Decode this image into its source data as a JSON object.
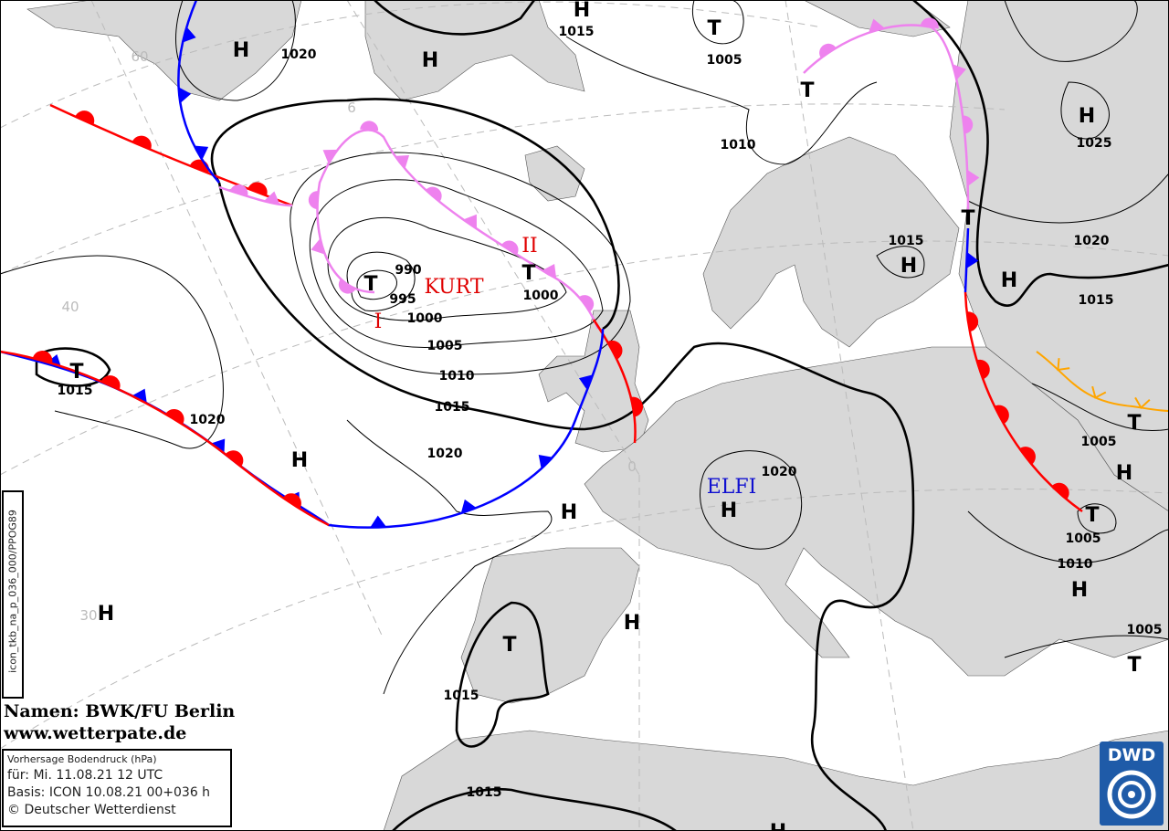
{
  "map": {
    "title_lines": {
      "names": "Namen: BWK/FU Berlin",
      "website": "www.wetterpate.de"
    },
    "info": {
      "product": "Vorhersage Bodendruck (hPa)",
      "valid": "für:  Mi. 11.08.21  12 UTC",
      "basis": "Basis: ICON  10.08.21 00+036 h",
      "copyright": "© Deutscher Wetterdienst"
    },
    "code": "icon_tkb_na_p_036_000/PPOG89",
    "logo": "DWD",
    "colors": {
      "land": "#d8d8d8",
      "warm_front": "#ff0000",
      "cold_front": "#0000ff",
      "occlusion": "#ee82ee",
      "trough": "#ffa500",
      "low_name": "#e00000",
      "high_name": "#1010d0"
    },
    "pressure_labels": [
      "1020",
      "1015",
      "1005",
      "1010",
      "1025",
      "1020",
      "1015",
      "1015",
      "990",
      "995",
      "1000",
      "1000",
      "1005",
      "1010",
      "1015",
      "1020",
      "1015",
      "1020",
      "1020",
      "1005",
      "1005",
      "1010",
      "1005",
      "1015",
      "1015"
    ],
    "highs": [
      "H",
      "H",
      "H",
      "H",
      "H",
      "H",
      "H",
      "H",
      "H",
      "H",
      "H",
      "H",
      "H",
      "H"
    ],
    "lows": [
      "T",
      "T",
      "T",
      "T",
      "T",
      "T",
      "T",
      "T",
      "T",
      "T"
    ],
    "system_names": {
      "kurt": "KURT",
      "kurt_1": "I",
      "kurt_2": "II",
      "elfi": "ELFI"
    },
    "graticule_labels": [
      "60",
      "6",
      "40",
      "30",
      "0"
    ]
  }
}
